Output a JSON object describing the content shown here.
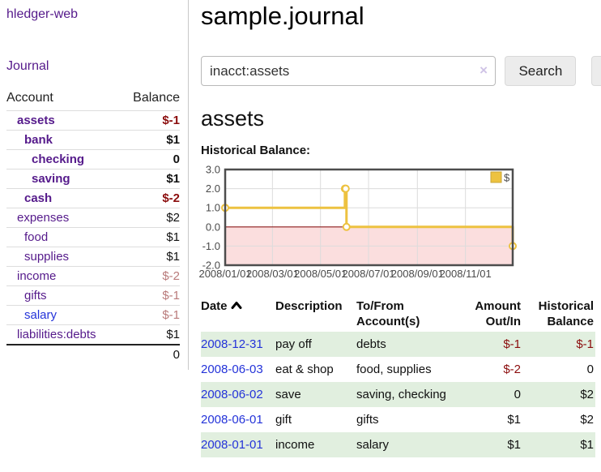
{
  "app": {
    "brand": "hledger-web"
  },
  "nav": {
    "journal_label": "Journal"
  },
  "sidebar": {
    "header": {
      "account": "Account",
      "balance": "Balance"
    },
    "accounts": [
      {
        "name": "assets",
        "depth": 1,
        "bold": true,
        "blue": false,
        "balance": "$-1",
        "balance_style": "neg"
      },
      {
        "name": "bank",
        "depth": 2,
        "bold": true,
        "blue": false,
        "balance": "$1",
        "balance_style": "pos"
      },
      {
        "name": "checking",
        "depth": 3,
        "bold": true,
        "blue": false,
        "balance": "0",
        "balance_style": "pos"
      },
      {
        "name": "saving",
        "depth": 3,
        "bold": true,
        "blue": false,
        "balance": "$1",
        "balance_style": "pos"
      },
      {
        "name": "cash",
        "depth": 2,
        "bold": true,
        "blue": false,
        "balance": "$-2",
        "balance_style": "neg"
      },
      {
        "name": "expenses",
        "depth": 1,
        "bold": false,
        "blue": false,
        "balance": "$2",
        "balance_style": "pos"
      },
      {
        "name": "food",
        "depth": 2,
        "bold": false,
        "blue": false,
        "balance": "$1",
        "balance_style": "pos"
      },
      {
        "name": "supplies",
        "depth": 2,
        "bold": false,
        "blue": false,
        "balance": "$1",
        "balance_style": "pos"
      },
      {
        "name": "income",
        "depth": 1,
        "bold": false,
        "blue": false,
        "balance": "$-2",
        "balance_style": "neg-dim"
      },
      {
        "name": "gifts",
        "depth": 2,
        "bold": false,
        "blue": false,
        "balance": "$-1",
        "balance_style": "neg-dim"
      },
      {
        "name": "salary",
        "depth": 2,
        "bold": false,
        "blue": true,
        "balance": "$-1",
        "balance_style": "neg-dim"
      },
      {
        "name": "liabilities:debts",
        "depth": 1,
        "bold": false,
        "blue": false,
        "balance": "$1",
        "balance_style": "pos"
      }
    ],
    "total": "0"
  },
  "header": {
    "title": "sample.journal"
  },
  "search": {
    "value": "inacct:assets",
    "clear_glyph": "×",
    "button_label": "Search",
    "help_label": "?"
  },
  "account_page": {
    "title": "assets",
    "chart_heading": "Historical Balance:"
  },
  "chart_data": {
    "type": "line",
    "subtype": "step-with-markers",
    "legend": [
      {
        "name": "$",
        "color": "#edc240"
      }
    ],
    "points": [
      {
        "date": "2008-01-01",
        "value": 1
      },
      {
        "date": "2008-06-01",
        "value": 2
      },
      {
        "date": "2008-06-02",
        "value": 2
      },
      {
        "date": "2008-06-03",
        "value": 0
      },
      {
        "date": "2008-12-31",
        "value": -1
      }
    ],
    "x_range": [
      "2008-01-01",
      "2008-12-31"
    ],
    "xticks": [
      "2008/01/01",
      "2008/03/01",
      "2008/05/01",
      "2008/07/01",
      "2008/09/01",
      "2008/11/01"
    ],
    "ylim": [
      -2,
      3
    ],
    "ytick_step": 1,
    "ytick_labels": [
      "3.0",
      "2.0",
      "1.0",
      "0.0",
      "-1.0",
      "-2.0"
    ],
    "grid": true,
    "legend_position": "top-right",
    "negative_region_shaded": true,
    "colors": {
      "series": "#edc240",
      "marker_fill": "#ffffff",
      "zero_line": "#8c1a1a",
      "negative_fill": "#fbdede",
      "frame": "#4d4d4d",
      "gridline": "#dcdcdc",
      "axis_text": "#4a4a4a"
    }
  },
  "register": {
    "columns": [
      "Date",
      "Description",
      "To/From Account(s)",
      "Amount Out/In",
      "Historical Balance"
    ],
    "sort": {
      "column": "Date",
      "direction": "asc"
    },
    "rows": [
      {
        "date": "2008-12-31",
        "description": "pay off",
        "accounts": "debts",
        "amount": "$-1",
        "amount_neg": true,
        "balance": "$-1",
        "balance_neg": true
      },
      {
        "date": "2008-06-03",
        "description": "eat & shop",
        "accounts": "food, supplies",
        "amount": "$-2",
        "amount_neg": true,
        "balance": "0",
        "balance_neg": false
      },
      {
        "date": "2008-06-02",
        "description": "save",
        "accounts": "saving, checking",
        "amount": "0",
        "amount_neg": false,
        "balance": "$2",
        "balance_neg": false
      },
      {
        "date": "2008-06-01",
        "description": "gift",
        "accounts": "gifts",
        "amount": "$1",
        "amount_neg": false,
        "balance": "$2",
        "balance_neg": false
      },
      {
        "date": "2008-01-01",
        "description": "income",
        "accounts": "salary",
        "amount": "$1",
        "amount_neg": false,
        "balance": "$1",
        "balance_neg": false
      }
    ]
  },
  "colors": {
    "link_purple": "#551a8b",
    "link_blue": "#2433d9",
    "negative_strong": "#8b0d0d",
    "negative_dim": "#b97a7a",
    "row_stripe_green": "#e1efdf"
  }
}
